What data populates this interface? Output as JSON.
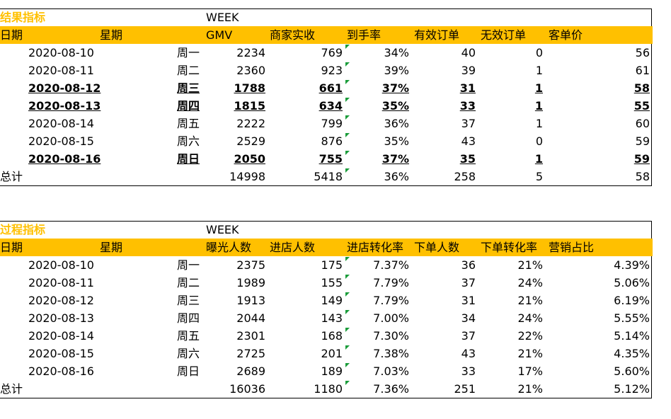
{
  "results": {
    "title": "结果指标",
    "week_label": "WEEK",
    "headers": [
      "日期",
      "星期",
      "GMV",
      "商家实收",
      "到手率",
      "有效订单",
      "无效订单",
      "客单价"
    ],
    "rows": [
      {
        "date": "2020-08-10",
        "weekday": "周一",
        "gmv": "2234",
        "income": "769",
        "rate": "34%",
        "valid": "40",
        "invalid": "0",
        "avg": "56",
        "bold": false
      },
      {
        "date": "2020-08-11",
        "weekday": "周二",
        "gmv": "2360",
        "income": "923",
        "rate": "39%",
        "valid": "39",
        "invalid": "1",
        "avg": "61",
        "bold": false
      },
      {
        "date": "2020-08-12",
        "weekday": "周三",
        "gmv": "1788",
        "income": "661",
        "rate": "37%",
        "valid": "31",
        "invalid": "1",
        "avg": "58",
        "bold": true
      },
      {
        "date": "2020-08-13",
        "weekday": "周四",
        "gmv": "1815",
        "income": "634",
        "rate": "35%",
        "valid": "33",
        "invalid": "1",
        "avg": "55",
        "bold": true
      },
      {
        "date": "2020-08-14",
        "weekday": "周五",
        "gmv": "2222",
        "income": "799",
        "rate": "36%",
        "valid": "37",
        "invalid": "1",
        "avg": "60",
        "bold": false
      },
      {
        "date": "2020-08-15",
        "weekday": "周六",
        "gmv": "2529",
        "income": "876",
        "rate": "35%",
        "valid": "43",
        "invalid": "0",
        "avg": "59",
        "bold": false
      },
      {
        "date": "2020-08-16",
        "weekday": "周日",
        "gmv": "2050",
        "income": "755",
        "rate": "37%",
        "valid": "35",
        "invalid": "1",
        "avg": "59",
        "bold": true
      }
    ],
    "total": {
      "label": "总计",
      "gmv": "14998",
      "income": "5418",
      "rate": "36%",
      "valid": "258",
      "invalid": "5",
      "avg": "58"
    }
  },
  "process": {
    "title": "过程指标",
    "week_label": "WEEK",
    "headers": [
      "日期",
      "星期",
      "曝光人数",
      "进店人数",
      "进店转化率",
      "下单人数",
      "下单转化率",
      "营销占比"
    ],
    "rows": [
      {
        "date": "2020-08-10",
        "weekday": "周一",
        "exposure": "2375",
        "visitors": "175",
        "visit_rate": "7.37%",
        "buyers": "36",
        "order_rate": "21%",
        "marketing": "4.39%"
      },
      {
        "date": "2020-08-11",
        "weekday": "周二",
        "exposure": "1989",
        "visitors": "155",
        "visit_rate": "7.79%",
        "buyers": "37",
        "order_rate": "24%",
        "marketing": "5.06%"
      },
      {
        "date": "2020-08-12",
        "weekday": "周三",
        "exposure": "1913",
        "visitors": "149",
        "visit_rate": "7.79%",
        "buyers": "31",
        "order_rate": "21%",
        "marketing": "6.19%"
      },
      {
        "date": "2020-08-13",
        "weekday": "周四",
        "exposure": "2044",
        "visitors": "143",
        "visit_rate": "7.00%",
        "buyers": "34",
        "order_rate": "24%",
        "marketing": "5.55%"
      },
      {
        "date": "2020-08-14",
        "weekday": "周五",
        "exposure": "2301",
        "visitors": "168",
        "visit_rate": "7.30%",
        "buyers": "37",
        "order_rate": "22%",
        "marketing": "5.14%"
      },
      {
        "date": "2020-08-15",
        "weekday": "周六",
        "exposure": "2725",
        "visitors": "201",
        "visit_rate": "7.38%",
        "buyers": "43",
        "order_rate": "21%",
        "marketing": "4.35%"
      },
      {
        "date": "2020-08-16",
        "weekday": "周日",
        "exposure": "2689",
        "visitors": "189",
        "visit_rate": "7.03%",
        "buyers": "33",
        "order_rate": "17%",
        "marketing": "5.60%"
      }
    ],
    "total": {
      "label": "总计",
      "exposure": "16036",
      "visitors": "1180",
      "visit_rate": "7.36%",
      "buyers": "251",
      "order_rate": "21%",
      "marketing": "5.12%"
    }
  },
  "colors": {
    "header_fill": "#ffc000",
    "title_text": "#ffc000",
    "indicator": "#1a9c3a"
  }
}
